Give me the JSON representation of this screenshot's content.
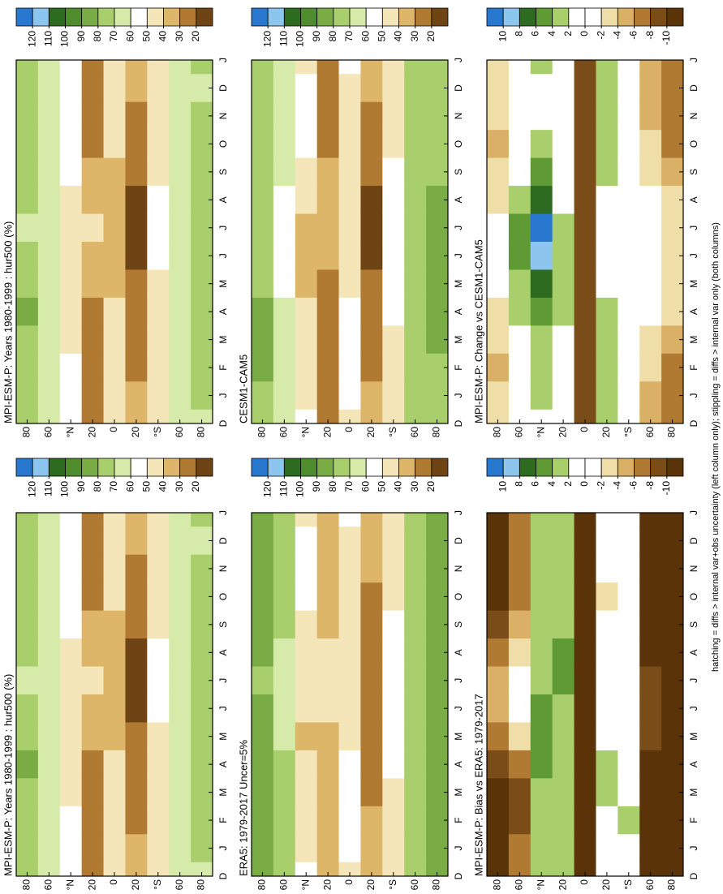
{
  "chart_data": [
    {
      "type": "heatmap",
      "title": "MPI-ESM-P: Years 1980-1999 : hur500 (%)",
      "categories": [
        "D",
        "J",
        "F",
        "M",
        "A",
        "M",
        "J",
        "J",
        "A",
        "S",
        "O",
        "N",
        "D",
        "J"
      ],
      "y": [
        80,
        60,
        40,
        20,
        0,
        -20,
        -40,
        -60,
        -80
      ],
      "ylim": [
        -90,
        90
      ],
      "yticks": [
        80,
        60,
        {
          "value": 40,
          "label": "°N"
        },
        20,
        0,
        {
          "value": -20,
          "label": "20"
        },
        {
          "value": -40,
          "label": "°S"
        },
        {
          "value": -60,
          "label": "60"
        },
        {
          "value": -80,
          "label": "80"
        }
      ],
      "values": [
        [
          72,
          74,
          76,
          78,
          80,
          76,
          70,
          68,
          70,
          72,
          74,
          73,
          72,
          74
        ],
        [
          66,
          66,
          68,
          68,
          66,
          62,
          60,
          60,
          62,
          64,
          66,
          66,
          66,
          66
        ],
        [
          52,
          50,
          50,
          48,
          44,
          40,
          42,
          46,
          48,
          50,
          52,
          52,
          52,
          50
        ],
        [
          28,
          26,
          24,
          24,
          26,
          30,
          36,
          40,
          38,
          32,
          28,
          26,
          28,
          26
        ],
        [
          40,
          42,
          44,
          44,
          42,
          38,
          34,
          32,
          34,
          38,
          40,
          40,
          40,
          42
        ],
        [
          34,
          30,
          28,
          26,
          24,
          20,
          18,
          18,
          18,
          20,
          24,
          28,
          34,
          30
        ],
        [
          46,
          46,
          46,
          46,
          48,
          48,
          50,
          50,
          50,
          48,
          46,
          46,
          46,
          46
        ],
        [
          66,
          66,
          66,
          68,
          68,
          68,
          68,
          68,
          68,
          68,
          66,
          66,
          66,
          66
        ],
        [
          68,
          70,
          72,
          74,
          76,
          76,
          76,
          76,
          76,
          74,
          72,
          70,
          68,
          70
        ]
      ],
      "colorbar_ticks": [
        120,
        110,
        100,
        90,
        80,
        70,
        60,
        50,
        40,
        30,
        20
      ],
      "colors": [
        "#2878d0",
        "#8cc6ee",
        "#2d6b20",
        "#4e8c2d",
        "#7aac45",
        "#a9cf6c",
        "#d6ebaa",
        "#ffffff",
        "#f4e6b8",
        "#ddb66a",
        "#b17a32",
        "#6e4414"
      ]
    },
    {
      "type": "heatmap",
      "title": "MPI-ESM-P: Years 1980-1999 : hur500 (%)",
      "categories": [
        "D",
        "J",
        "F",
        "M",
        "A",
        "M",
        "J",
        "J",
        "A",
        "S",
        "O",
        "N",
        "D",
        "J"
      ],
      "y": [
        80,
        60,
        40,
        20,
        0,
        -20,
        -40,
        -60,
        -80
      ],
      "ylim": [
        -90,
        90
      ],
      "yticks": [
        80,
        60,
        {
          "value": 40,
          "label": "°N"
        },
        20,
        0,
        {
          "value": -20,
          "label": "20"
        },
        {
          "value": -40,
          "label": "°S"
        },
        {
          "value": -60,
          "label": "60"
        },
        {
          "value": -80,
          "label": "80"
        }
      ],
      "values": [
        [
          72,
          74,
          76,
          78,
          80,
          76,
          70,
          68,
          70,
          72,
          74,
          73,
          72,
          74
        ],
        [
          66,
          66,
          68,
          68,
          66,
          62,
          60,
          60,
          62,
          64,
          66,
          66,
          66,
          66
        ],
        [
          52,
          50,
          50,
          48,
          44,
          40,
          42,
          46,
          48,
          50,
          52,
          52,
          52,
          50
        ],
        [
          28,
          26,
          24,
          24,
          26,
          30,
          36,
          40,
          38,
          32,
          28,
          26,
          28,
          26
        ],
        [
          40,
          42,
          44,
          44,
          42,
          38,
          34,
          32,
          34,
          38,
          40,
          40,
          40,
          42
        ],
        [
          34,
          30,
          28,
          26,
          24,
          20,
          18,
          18,
          18,
          20,
          24,
          28,
          34,
          30
        ],
        [
          46,
          46,
          46,
          46,
          48,
          48,
          50,
          50,
          50,
          48,
          46,
          46,
          46,
          46
        ],
        [
          66,
          66,
          66,
          68,
          68,
          68,
          68,
          68,
          68,
          68,
          66,
          66,
          66,
          66
        ],
        [
          68,
          70,
          72,
          74,
          76,
          76,
          76,
          76,
          76,
          74,
          72,
          70,
          68,
          70
        ]
      ],
      "colorbar_ticks": [
        120,
        110,
        100,
        90,
        80,
        70,
        60,
        50,
        40,
        30,
        20
      ],
      "colors": [
        "#2878d0",
        "#8cc6ee",
        "#2d6b20",
        "#4e8c2d",
        "#7aac45",
        "#a9cf6c",
        "#d6ebaa",
        "#ffffff",
        "#f4e6b8",
        "#ddb66a",
        "#b17a32",
        "#6e4414"
      ]
    },
    {
      "type": "heatmap",
      "title": "ERA5: 1979-2017 Uncer=5%",
      "categories": [
        "D",
        "J",
        "F",
        "M",
        "A",
        "M",
        "J",
        "J",
        "A",
        "S",
        "O",
        "N",
        "D",
        "J"
      ],
      "y": [
        80,
        60,
        40,
        20,
        0,
        -20,
        -40,
        -60,
        -80
      ],
      "ylim": [
        -90,
        90
      ],
      "yticks": [
        80,
        60,
        {
          "value": 40,
          "label": "°N"
        },
        20,
        0,
        {
          "value": -20,
          "label": "20"
        },
        {
          "value": -40,
          "label": "°S"
        },
        {
          "value": -60,
          "label": "60"
        },
        {
          "value": -80,
          "label": "80"
        }
      ],
      "values": [
        [
          82,
          84,
          85,
          86,
          86,
          84,
          80,
          78,
          80,
          82,
          84,
          84,
          82,
          84
        ],
        [
          72,
          72,
          74,
          74,
          72,
          68,
          66,
          66,
          68,
          70,
          72,
          72,
          72,
          72
        ],
        [
          50,
          48,
          48,
          46,
          42,
          38,
          40,
          44,
          46,
          48,
          50,
          50,
          50,
          48
        ],
        [
          34,
          32,
          30,
          30,
          32,
          36,
          40,
          44,
          42,
          38,
          34,
          32,
          34,
          32
        ],
        [
          48,
          50,
          52,
          52,
          50,
          46,
          42,
          40,
          42,
          46,
          48,
          48,
          48,
          50
        ],
        [
          36,
          32,
          30,
          28,
          26,
          24,
          22,
          22,
          22,
          24,
          28,
          32,
          36,
          32
        ],
        [
          48,
          48,
          48,
          48,
          50,
          50,
          52,
          52,
          52,
          50,
          48,
          48,
          48,
          48
        ],
        [
          74,
          74,
          74,
          76,
          76,
          76,
          76,
          76,
          76,
          76,
          74,
          74,
          74,
          74
        ],
        [
          80,
          82,
          82,
          84,
          84,
          84,
          84,
          84,
          84,
          82,
          82,
          80,
          80,
          82
        ]
      ],
      "colorbar_ticks": [
        120,
        110,
        100,
        90,
        80,
        70,
        60,
        50,
        40,
        30,
        20
      ],
      "colors": [
        "#2878d0",
        "#8cc6ee",
        "#2d6b20",
        "#4e8c2d",
        "#7aac45",
        "#a9cf6c",
        "#d6ebaa",
        "#ffffff",
        "#f4e6b8",
        "#ddb66a",
        "#b17a32",
        "#6e4414"
      ]
    },
    {
      "type": "heatmap",
      "title": "CESM1-CAM5",
      "categories": [
        "D",
        "J",
        "F",
        "M",
        "A",
        "M",
        "J",
        "J",
        "A",
        "S",
        "O",
        "N",
        "D",
        "J"
      ],
      "y": [
        80,
        60,
        40,
        20,
        0,
        -20,
        -40,
        -60,
        -80
      ],
      "ylim": [
        -90,
        90
      ],
      "yticks": [
        80,
        60,
        {
          "value": 40,
          "label": "°N"
        },
        20,
        0,
        {
          "value": -20,
          "label": "20"
        },
        {
          "value": -40,
          "label": "°S"
        },
        {
          "value": -60,
          "label": "60"
        },
        {
          "value": -80,
          "label": "80"
        }
      ],
      "values": [
        [
          76,
          78,
          80,
          80,
          82,
          78,
          74,
          72,
          74,
          76,
          78,
          77,
          76,
          78
        ],
        [
          68,
          68,
          68,
          66,
          64,
          58,
          56,
          56,
          58,
          62,
          66,
          68,
          68,
          68
        ],
        [
          50,
          48,
          46,
          44,
          40,
          34,
          34,
          38,
          42,
          46,
          50,
          50,
          50,
          48
        ],
        [
          28,
          26,
          24,
          24,
          26,
          28,
          32,
          36,
          36,
          32,
          28,
          26,
          28,
          26
        ],
        [
          48,
          50,
          52,
          52,
          50,
          46,
          42,
          40,
          42,
          46,
          48,
          48,
          48,
          50
        ],
        [
          32,
          30,
          26,
          24,
          22,
          20,
          18,
          18,
          18,
          20,
          22,
          26,
          32,
          30
        ],
        [
          46,
          46,
          48,
          48,
          50,
          50,
          52,
          52,
          52,
          50,
          48,
          46,
          46,
          46
        ],
        [
          70,
          70,
          72,
          72,
          72,
          72,
          72,
          72,
          72,
          72,
          70,
          70,
          70,
          70
        ],
        [
          74,
          76,
          78,
          80,
          80,
          80,
          80,
          80,
          80,
          78,
          76,
          74,
          74,
          76
        ]
      ],
      "colorbar_ticks": [
        120,
        110,
        100,
        90,
        80,
        70,
        60,
        50,
        40,
        30,
        20
      ],
      "colors": [
        "#2878d0",
        "#8cc6ee",
        "#2d6b20",
        "#4e8c2d",
        "#7aac45",
        "#a9cf6c",
        "#d6ebaa",
        "#ffffff",
        "#f4e6b8",
        "#ddb66a",
        "#b17a32",
        "#6e4414"
      ]
    },
    {
      "type": "heatmap",
      "title": "MPI-ESM-P: Bias vs ERA5: 1979-2017",
      "categories": [
        "D",
        "J",
        "F",
        "M",
        "A",
        "M",
        "J",
        "J",
        "A",
        "S",
        "O",
        "N",
        "D",
        "J"
      ],
      "y": [
        80,
        60,
        40,
        20,
        0,
        -20,
        -40,
        -60,
        -80
      ],
      "ylim": [
        -90,
        90
      ],
      "yticks": [
        80,
        60,
        {
          "value": 40,
          "label": "°N"
        },
        20,
        0,
        {
          "value": -20,
          "label": "20"
        },
        {
          "value": -40,
          "label": "°S"
        },
        {
          "value": -60,
          "label": "60"
        },
        {
          "value": -80,
          "label": "80"
        }
      ],
      "values": [
        [
          -11,
          -11,
          -11,
          -11,
          -10,
          -8,
          -6,
          -6,
          -8,
          -10,
          -11,
          -11,
          -11,
          -11
        ],
        [
          -8,
          -8,
          -9,
          -9,
          -8,
          -4,
          -2,
          -2,
          -4,
          -6,
          -8,
          -8,
          -8,
          -8
        ],
        [
          2,
          2,
          2,
          3,
          4,
          5,
          4,
          3,
          3,
          2,
          2,
          2,
          2,
          2
        ],
        [
          3,
          3,
          2,
          2,
          2,
          2,
          3,
          4,
          4,
          3,
          3,
          3,
          3,
          3
        ],
        [
          -11,
          -11,
          -11,
          -11,
          -11,
          -11,
          -11,
          -11,
          -11,
          -11,
          -11,
          -11,
          -11,
          -11
        ],
        [
          -1,
          0,
          1,
          2,
          2,
          1,
          1,
          1,
          0,
          -1,
          -3,
          -1,
          -1,
          0
        ],
        [
          1,
          1,
          2,
          1,
          0,
          0,
          0,
          0,
          0,
          0,
          -1,
          0,
          1,
          1
        ],
        [
          -11,
          -11,
          -11,
          -11,
          -11,
          -10,
          -10,
          -10,
          -11,
          -11,
          -11,
          -11,
          -11,
          -11
        ],
        [
          -11,
          -11,
          -11,
          -11,
          -11,
          -11,
          -11,
          -11,
          -11,
          -11,
          -11,
          -11,
          -11,
          -11
        ]
      ],
      "colorbar_ticks": [
        10,
        8,
        6,
        4,
        2,
        0,
        -2,
        -4,
        -6,
        -8,
        -10
      ],
      "colors": [
        "#2878d0",
        "#8cc6ee",
        "#2d6b20",
        "#5f9a35",
        "#a9cf6c",
        "#ffffff",
        "#ffffff",
        "#f0dea8",
        "#d9b066",
        "#b07a32",
        "#7a4c18",
        "#5a3408"
      ]
    },
    {
      "type": "heatmap",
      "title": "MPI-ESM-P: Change vs CESM1-CAM5",
      "categories": [
        "D",
        "J",
        "F",
        "M",
        "A",
        "M",
        "J",
        "J",
        "A",
        "S",
        "O",
        "N",
        "D",
        "J"
      ],
      "y": [
        80,
        60,
        40,
        20,
        0,
        -20,
        -40,
        -60,
        -80
      ],
      "ylim": [
        -90,
        90
      ],
      "yticks": [
        80,
        60,
        {
          "value": 40,
          "label": "°N"
        },
        20,
        0,
        {
          "value": -20,
          "label": "20"
        },
        {
          "value": -40,
          "label": "°S"
        },
        {
          "value": -60,
          "label": "60"
        },
        {
          "value": -80,
          "label": "80"
        }
      ],
      "values": [
        [
          -4,
          -4,
          -5,
          -4,
          -3,
          -2,
          -2,
          -2,
          -3,
          -4,
          -5,
          -4,
          -4,
          -4
        ],
        [
          -2,
          -1,
          0,
          1,
          2,
          3,
          4,
          4,
          3,
          1,
          0,
          -1,
          -2,
          -1
        ],
        [
          1,
          2,
          2,
          3,
          4,
          6,
          9,
          10,
          7,
          4,
          2,
          1,
          1,
          2
        ],
        [
          0,
          0,
          1,
          1,
          2,
          2,
          2,
          2,
          1,
          0,
          0,
          0,
          0,
          0
        ],
        [
          -9,
          -9,
          -9,
          -9,
          -9,
          -9,
          -9,
          -9,
          -9,
          -9,
          -9,
          -9,
          -9,
          -9
        ],
        [
          2,
          3,
          3,
          2,
          2,
          1,
          1,
          1,
          1,
          2,
          3,
          3,
          2,
          3
        ],
        [
          0,
          0,
          1,
          1,
          0,
          0,
          0,
          0,
          0,
          0,
          1,
          1,
          0,
          0
        ],
        [
          -5,
          -5,
          -4,
          -3,
          -2,
          -2,
          -1,
          -1,
          -2,
          -3,
          -4,
          -5,
          -5,
          -5
        ],
        [
          -8,
          -8,
          -7,
          -6,
          -4,
          -3,
          -3,
          -3,
          -4,
          -5,
          -7,
          -8,
          -8,
          -8
        ]
      ],
      "colorbar_ticks": [
        10,
        8,
        6,
        4,
        2,
        0,
        -2,
        -4,
        -6,
        -8,
        -10
      ],
      "colors": [
        "#2878d0",
        "#8cc6ee",
        "#2d6b20",
        "#5f9a35",
        "#a9cf6c",
        "#ffffff",
        "#ffffff",
        "#f0dea8",
        "#d9b066",
        "#b07a32",
        "#7a4c18",
        "#5a3408"
      ]
    }
  ],
  "footer": "hatching = diffs > internal var+obs uncertainty (left column only); stippling = diffs > internal var only (both columns)"
}
